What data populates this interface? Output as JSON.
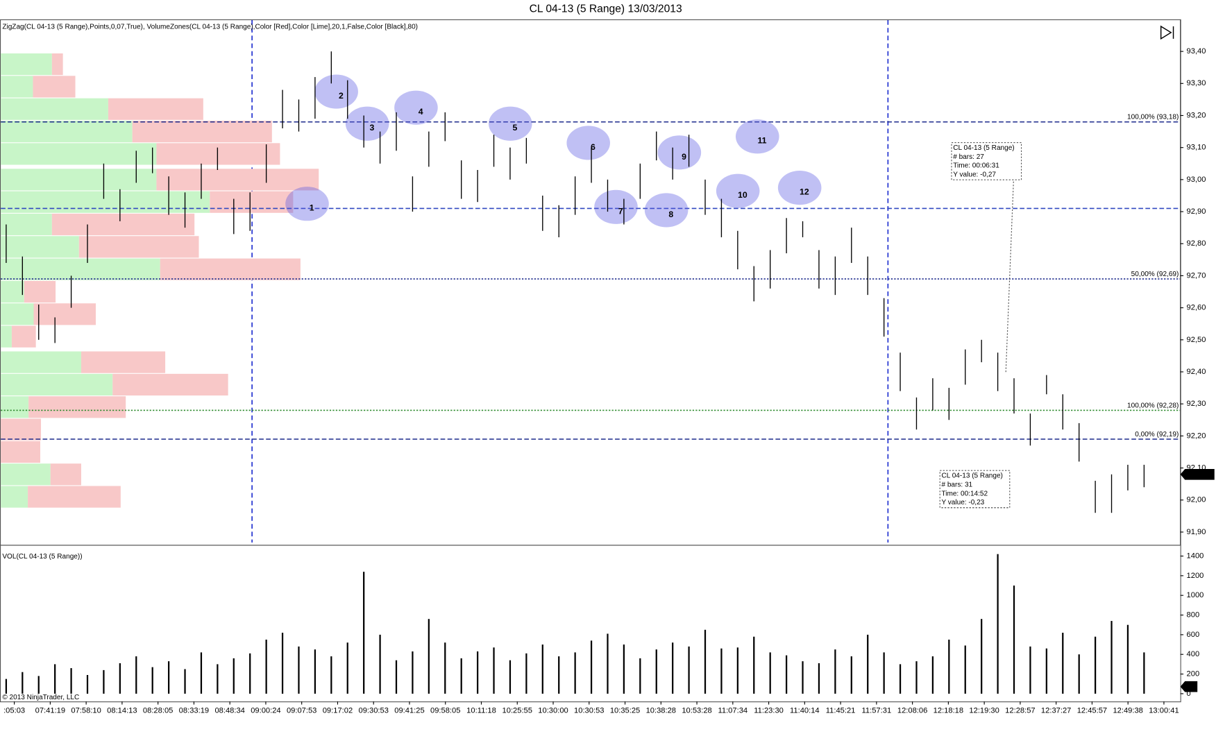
{
  "chart_data": [
    {
      "type": "hlbar",
      "title": "CL 04-13 (5 Range)  13/03/2013",
      "indicator_label": "ZigZag(CL 04-13 (5 Range),Points,0,07,True), VolumeZones(CL 04-13 (5 Range),Color [Red],Color [Lime],20,1,False,Color [Black],80)",
      "color": "#000000",
      "xlim": [
        -0.38,
        72.23
      ],
      "ylim": [
        91.86,
        93.5
      ],
      "xticks": [
        {
          "value": 0.5,
          "label": ":05:03"
        },
        {
          "value": 2.71,
          "label": "07:41:19"
        },
        {
          "value": 4.92,
          "label": "07:58:10"
        },
        {
          "value": 7.13,
          "label": "08:14:13"
        },
        {
          "value": 9.34,
          "label": "08:28:05"
        },
        {
          "value": 11.55,
          "label": "08:33:19"
        },
        {
          "value": 13.76,
          "label": "08:48:34"
        },
        {
          "value": 15.97,
          "label": "09:00:24"
        },
        {
          "value": 18.18,
          "label": "09:07:53"
        },
        {
          "value": 20.39,
          "label": "09:17:02"
        },
        {
          "value": 22.6,
          "label": "09:30:53"
        },
        {
          "value": 24.81,
          "label": "09:41:25"
        },
        {
          "value": 27.02,
          "label": "09:58:05"
        },
        {
          "value": 29.23,
          "label": "10:11:18"
        },
        {
          "value": 31.44,
          "label": "10:25:55"
        },
        {
          "value": 33.65,
          "label": "10:30:00"
        },
        {
          "value": 35.86,
          "label": "10:30:53"
        },
        {
          "value": 38.07,
          "label": "10:35:25"
        },
        {
          "value": 40.28,
          "label": "10:38:28"
        },
        {
          "value": 42.49,
          "label": "10:53:28"
        },
        {
          "value": 44.7,
          "label": "11:07:34"
        },
        {
          "value": 46.91,
          "label": "11:23:30"
        },
        {
          "value": 49.12,
          "label": "11:40:14"
        },
        {
          "value": 51.33,
          "label": "11:45:21"
        },
        {
          "value": 53.54,
          "label": "11:57:31"
        },
        {
          "value": 55.75,
          "label": "12:08:06"
        },
        {
          "value": 57.96,
          "label": "12:18:18"
        },
        {
          "value": 60.17,
          "label": "12:19:30"
        },
        {
          "value": 62.38,
          "label": "12:28:57"
        },
        {
          "value": 64.59,
          "label": "12:37:27"
        },
        {
          "value": 66.8,
          "label": "12:45:57"
        },
        {
          "value": 69.01,
          "label": "12:49:38"
        },
        {
          "value": 71.22,
          "label": "13:00:41"
        }
      ],
      "yticks": [
        {
          "value": 91.9,
          "label": "91,90"
        },
        {
          "value": 92.0,
          "label": "92,00"
        },
        {
          "value": 92.1,
          "label": "92,10"
        },
        {
          "value": 92.2,
          "label": "92,20"
        },
        {
          "value": 92.3,
          "label": "92,30"
        },
        {
          "value": 92.4,
          "label": "92,40"
        },
        {
          "value": 92.5,
          "label": "92,50"
        },
        {
          "value": 92.6,
          "label": "92,60"
        },
        {
          "value": 92.7,
          "label": "92,70"
        },
        {
          "value": 92.8,
          "label": "92,80"
        },
        {
          "value": 92.9,
          "label": "92,90"
        },
        {
          "value": 93.0,
          "label": "93,00"
        },
        {
          "value": 93.1,
          "label": "93,10"
        },
        {
          "value": 93.2,
          "label": "93,20"
        },
        {
          "value": 93.3,
          "label": "93,30"
        },
        {
          "value": 93.4,
          "label": "93,40"
        }
      ],
      "highs": [
        92.86,
        92.76,
        92.61,
        92.57,
        92.7,
        92.86,
        93.05,
        92.97,
        93.09,
        93.1,
        93.01,
        92.96,
        93.05,
        93.1,
        92.94,
        92.96,
        93.11,
        93.28,
        93.25,
        93.32,
        93.4,
        93.31,
        93.2,
        93.15,
        93.21,
        93.01,
        93.15,
        93.21,
        93.06,
        93.03,
        93.14,
        93.1,
        93.13,
        92.95,
        92.92,
        93.01,
        93.1,
        93.0,
        92.94,
        93.05,
        93.15,
        93.1,
        93.14,
        93.0,
        92.94,
        92.84,
        92.73,
        92.78,
        92.88,
        92.87,
        92.78,
        92.76,
        92.85,
        92.76,
        92.63,
        92.46,
        92.32,
        92.38,
        92.35,
        92.47,
        92.5,
        92.46,
        92.38,
        92.27,
        92.39,
        92.33,
        92.24,
        92.06,
        92.08,
        92.11,
        92.11
      ],
      "lows": [
        92.74,
        92.64,
        92.5,
        92.49,
        92.6,
        92.74,
        92.94,
        92.87,
        92.99,
        93.02,
        92.89,
        92.85,
        92.94,
        93.03,
        92.83,
        92.84,
        92.99,
        93.16,
        93.15,
        93.19,
        93.3,
        93.19,
        93.1,
        93.05,
        93.09,
        92.9,
        93.04,
        93.12,
        92.94,
        92.93,
        93.04,
        93.0,
        93.05,
        92.84,
        92.82,
        92.89,
        92.99,
        92.9,
        92.86,
        92.94,
        93.06,
        93.0,
        93.04,
        92.89,
        92.82,
        92.72,
        92.62,
        92.66,
        92.77,
        92.82,
        92.66,
        92.64,
        92.74,
        92.64,
        92.51,
        92.34,
        92.22,
        92.28,
        92.25,
        92.36,
        92.43,
        92.34,
        92.27,
        92.17,
        92.33,
        92.22,
        92.12,
        91.96,
        91.96,
        92.03,
        92.04
      ],
      "levels": [
        {
          "value": 93.18,
          "label": "100,00% (93,18)",
          "color": "#1c2a8c",
          "dash": "6 3"
        },
        {
          "value": 92.91,
          "color": "#3048c0",
          "dash": "6 3"
        },
        {
          "value": 92.69,
          "label": "50,00% (92,69)",
          "color": "#1c2a8c",
          "dash": "2 2"
        },
        {
          "value": 92.28,
          "label": "100,00% (92,28)",
          "color": "#2e8b2e",
          "dash": "2 2"
        },
        {
          "value": 92.19,
          "label": "0,00% (92,19)",
          "color": "#1c2a8c",
          "dash": "6 3"
        }
      ],
      "last_price": {
        "value": 92.08,
        "label": "92,08"
      },
      "swing_points": [
        {
          "label": 1,
          "bar": 18.8,
          "price": 92.91
        },
        {
          "label": 2,
          "bar": 20.6,
          "price": 93.26
        },
        {
          "label": 3,
          "bar": 22.5,
          "price": 93.16
        },
        {
          "label": 4,
          "bar": 25.5,
          "price": 93.21
        },
        {
          "label": 5,
          "bar": 31.3,
          "price": 93.16
        },
        {
          "label": 6,
          "bar": 36.1,
          "price": 93.1
        },
        {
          "label": 7,
          "bar": 37.8,
          "price": 92.9
        },
        {
          "label": 8,
          "bar": 40.9,
          "price": 92.89
        },
        {
          "label": 9,
          "bar": 41.7,
          "price": 93.07
        },
        {
          "label": 10,
          "bar": 45.3,
          "price": 92.95
        },
        {
          "label": 11,
          "bar": 46.5,
          "price": 93.12
        },
        {
          "label": 12,
          "bar": 49.1,
          "price": 92.96
        }
      ],
      "volume_zones": {
        "prices": [
          93.36,
          93.29,
          93.22,
          93.15,
          93.08,
          93.0,
          92.93,
          92.86,
          92.79,
          92.72,
          92.65,
          92.58,
          92.51,
          92.43,
          92.36,
          92.29,
          92.22,
          92.15,
          92.08,
          92.01
        ],
        "buy": [
          700,
          440,
          1470,
          1800,
          2130,
          2130,
          2860,
          700,
          1070,
          2180,
          320,
          450,
          150,
          1100,
          1530,
          380,
          0,
          0,
          680,
          370
        ],
        "sell": [
          150,
          580,
          1300,
          1910,
          1690,
          2220,
          1140,
          1950,
          1640,
          1920,
          430,
          850,
          330,
          1150,
          1580,
          1330,
          550,
          540,
          420,
          1270
        ],
        "buy_color": "#c8f5c8",
        "sell_color": "#f8c8c8"
      },
      "annotations": [
        {
          "lines": [
            "CL 04-13 (5 Range)",
            "# bars:   27",
            "Time:    00:06:31",
            "Y value: -0,27"
          ]
        },
        {
          "lines": [
            "CL 04-13 (5 Range)",
            "# bars:   31",
            "Time:    00:14:52",
            "Y value: -0,23"
          ]
        }
      ]
    },
    {
      "type": "bar",
      "title": "VOL(CL 04-13 (5 Range))",
      "copyright": "© 2013 NinjaTrader, LLC",
      "color": "#000000",
      "ylim": [
        0,
        1490
      ],
      "yticks": [
        0,
        200,
        400,
        600,
        800,
        1000,
        1200,
        1400
      ],
      "values": [
        150,
        220,
        180,
        300,
        260,
        190,
        240,
        310,
        380,
        270,
        330,
        250,
        420,
        300,
        360,
        410,
        550,
        620,
        480,
        450,
        380,
        520,
        1240,
        600,
        340,
        430,
        760,
        520,
        360,
        430,
        470,
        340,
        410,
        500,
        380,
        420,
        540,
        610,
        500,
        360,
        450,
        520,
        480,
        650,
        460,
        470,
        580,
        420,
        390,
        330,
        310,
        450,
        380,
        600,
        420,
        300,
        330,
        380,
        550,
        490,
        760,
        1420,
        1100,
        480,
        460,
        620,
        400,
        580,
        740,
        700,
        420
      ],
      "last_value": 72
    }
  ]
}
